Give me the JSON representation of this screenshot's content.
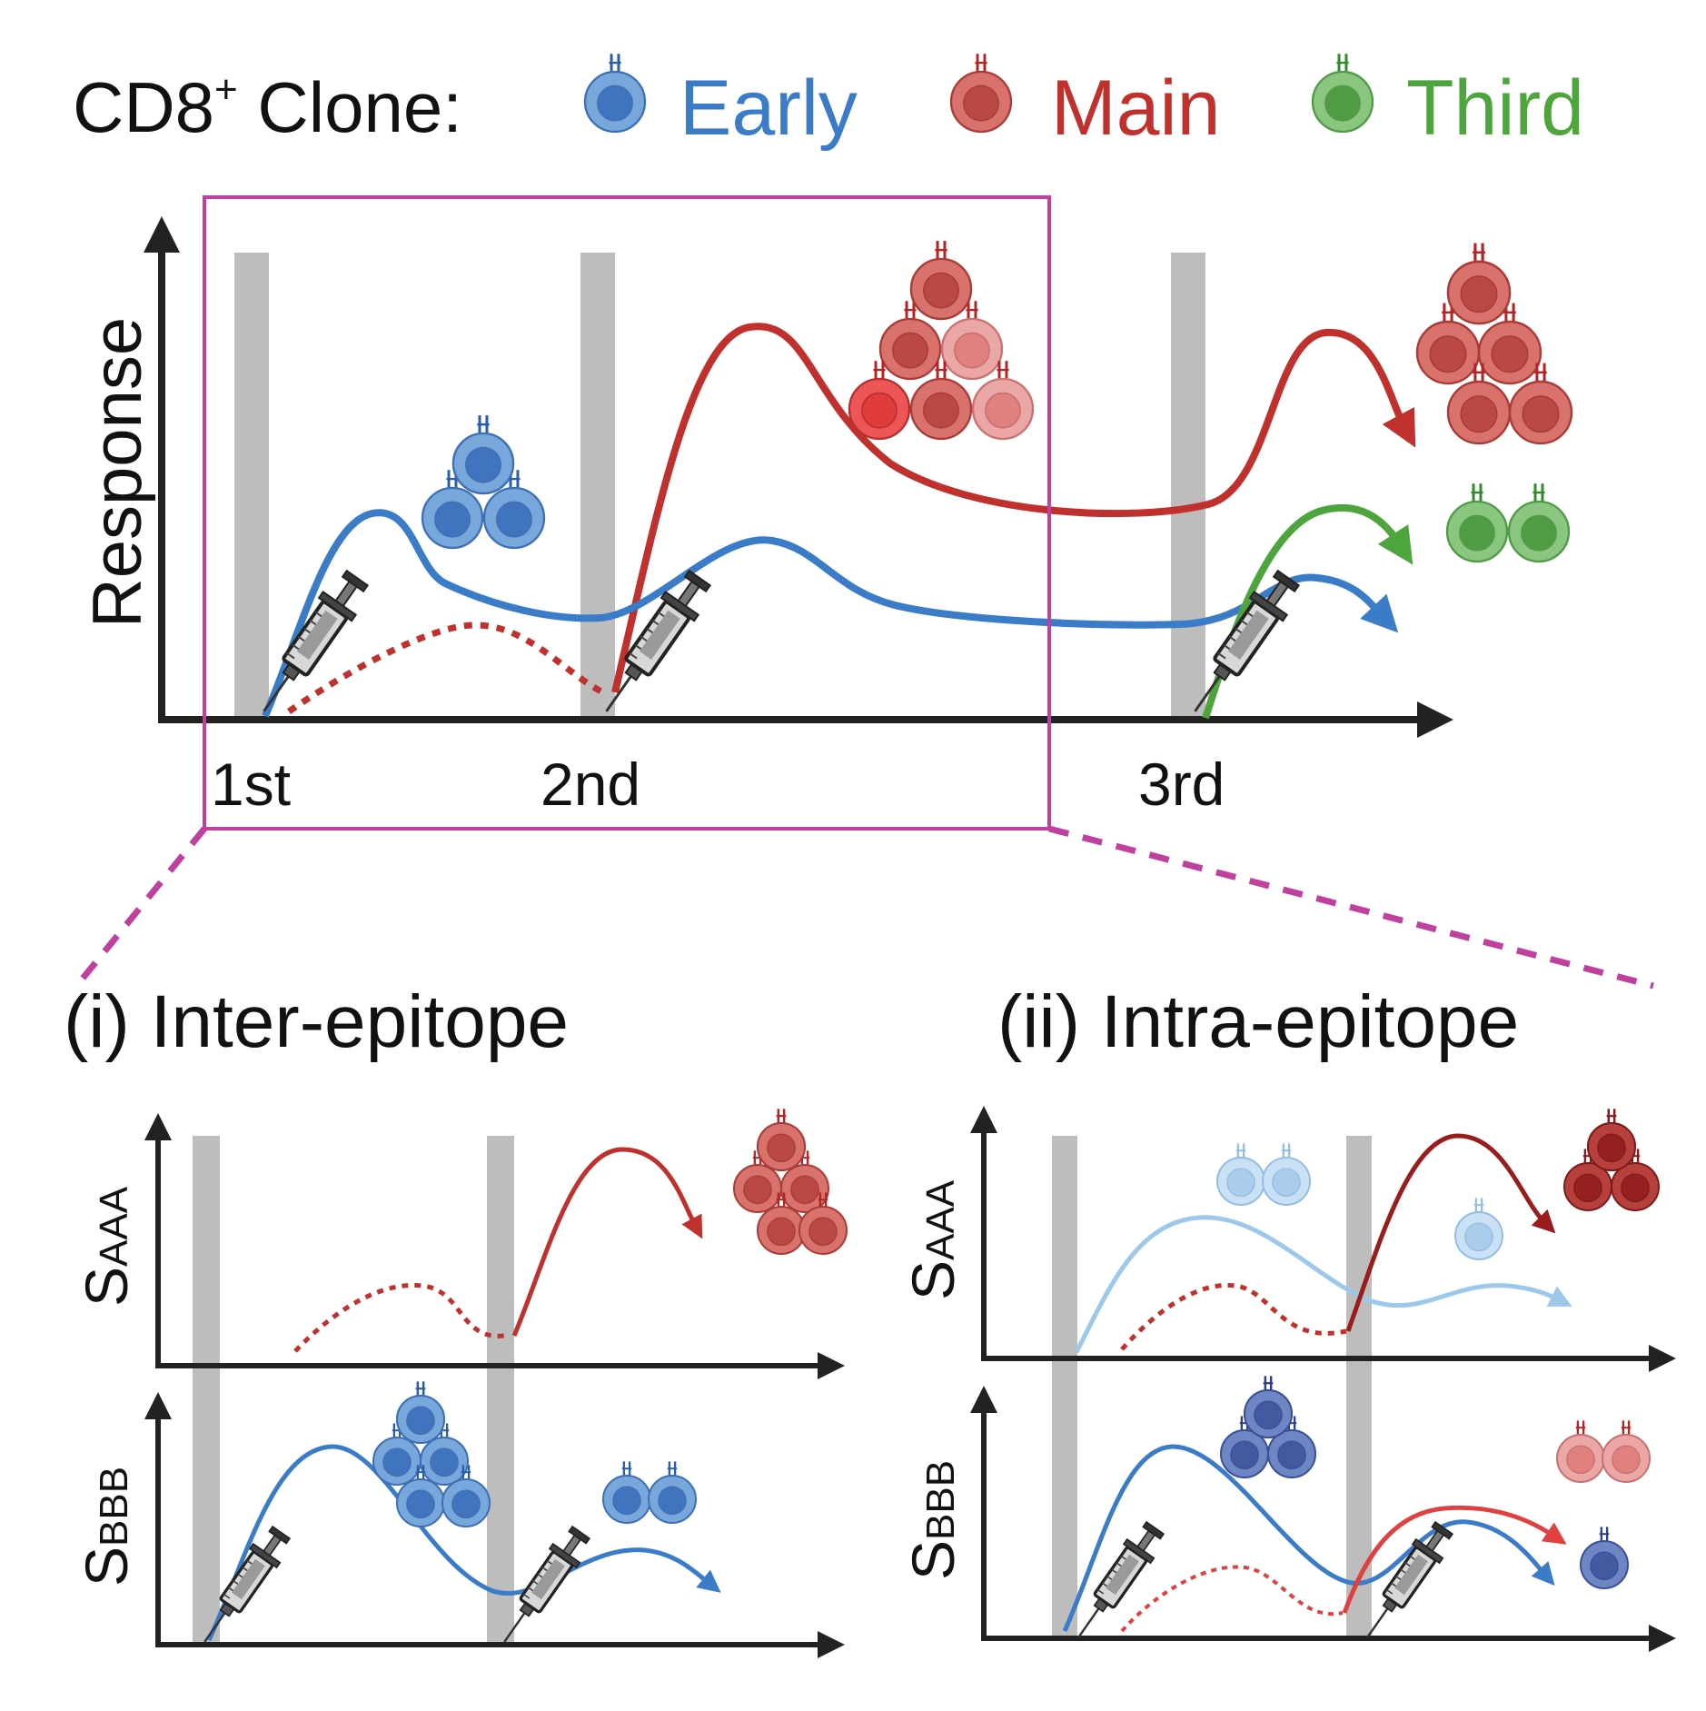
{
  "legend": {
    "prefix": "CD8",
    "superscript": "+",
    "suffix": " Clone:",
    "clones": [
      {
        "label": "Early",
        "color": "#3a7cc8"
      },
      {
        "label": "Main",
        "color": "#c0302c"
      },
      {
        "label": "Third",
        "color": "#4ea53e"
      }
    ]
  },
  "main_panel": {
    "ylabel": "Response",
    "doses": [
      "1st",
      "2nd",
      "3rd"
    ]
  },
  "panel_i": {
    "title": "(i) Inter-epitope",
    "top_ylabel": {
      "base": "S",
      "sub": "AAA"
    },
    "bottom_ylabel": {
      "base": "S",
      "sub": "BBB"
    }
  },
  "panel_ii": {
    "title": "(ii) Intra-epitope",
    "top_ylabel": {
      "base": "S",
      "sub": "AAA"
    },
    "bottom_ylabel": {
      "base": "S",
      "sub": "BBB"
    }
  },
  "colors": {
    "early": "#3a7cc8",
    "main": "#c0302c",
    "third": "#4ea53e",
    "light_blue": "#9cc8ec",
    "bright_red": "#e04040",
    "dark_red": "#9a1c1c",
    "bar": "#bdbdbd",
    "zoom": "#c040a0"
  }
}
